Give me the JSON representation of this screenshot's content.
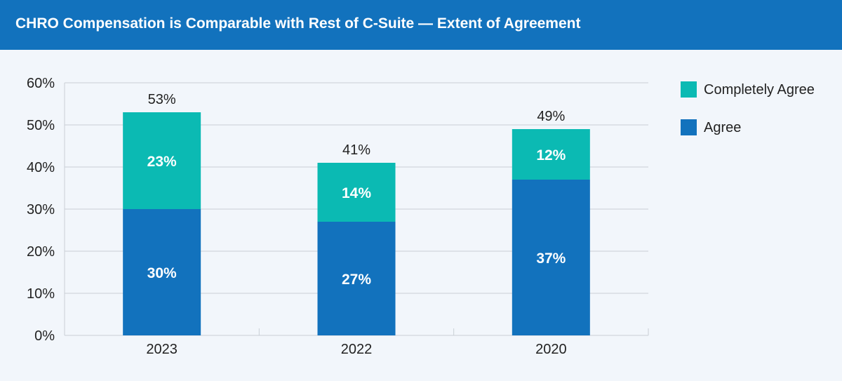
{
  "header": {
    "title": "CHRO Compensation is Comparable with Rest of C-Suite — Extent of Agreement"
  },
  "colors": {
    "header_bg": "#1272bd",
    "agree": "#1272bd",
    "completely_agree": "#0bbab3",
    "grid": "#c9cfd6",
    "background": "#f2f6fb"
  },
  "chart_data": {
    "type": "bar",
    "stacked": true,
    "categories": [
      "2023",
      "2022",
      "2020"
    ],
    "series": [
      {
        "name": "Agree",
        "values": [
          30,
          27,
          37
        ],
        "labels": [
          "30%",
          "27%",
          "37%"
        ]
      },
      {
        "name": "Completely Agree",
        "values": [
          23,
          14,
          12
        ],
        "labels": [
          "23%",
          "14%",
          "12%"
        ]
      }
    ],
    "totals": [
      53,
      41,
      49
    ],
    "total_labels": [
      "53%",
      "41%",
      "49%"
    ],
    "ylim": [
      0,
      60
    ],
    "yticks": [
      0,
      10,
      20,
      30,
      40,
      50,
      60
    ],
    "ytick_labels": [
      "0%",
      "10%",
      "20%",
      "30%",
      "40%",
      "50%",
      "60%"
    ],
    "grid": true,
    "legend_position": "right"
  },
  "legend": {
    "items": [
      {
        "label": "Completely Agree"
      },
      {
        "label": "Agree"
      }
    ]
  }
}
